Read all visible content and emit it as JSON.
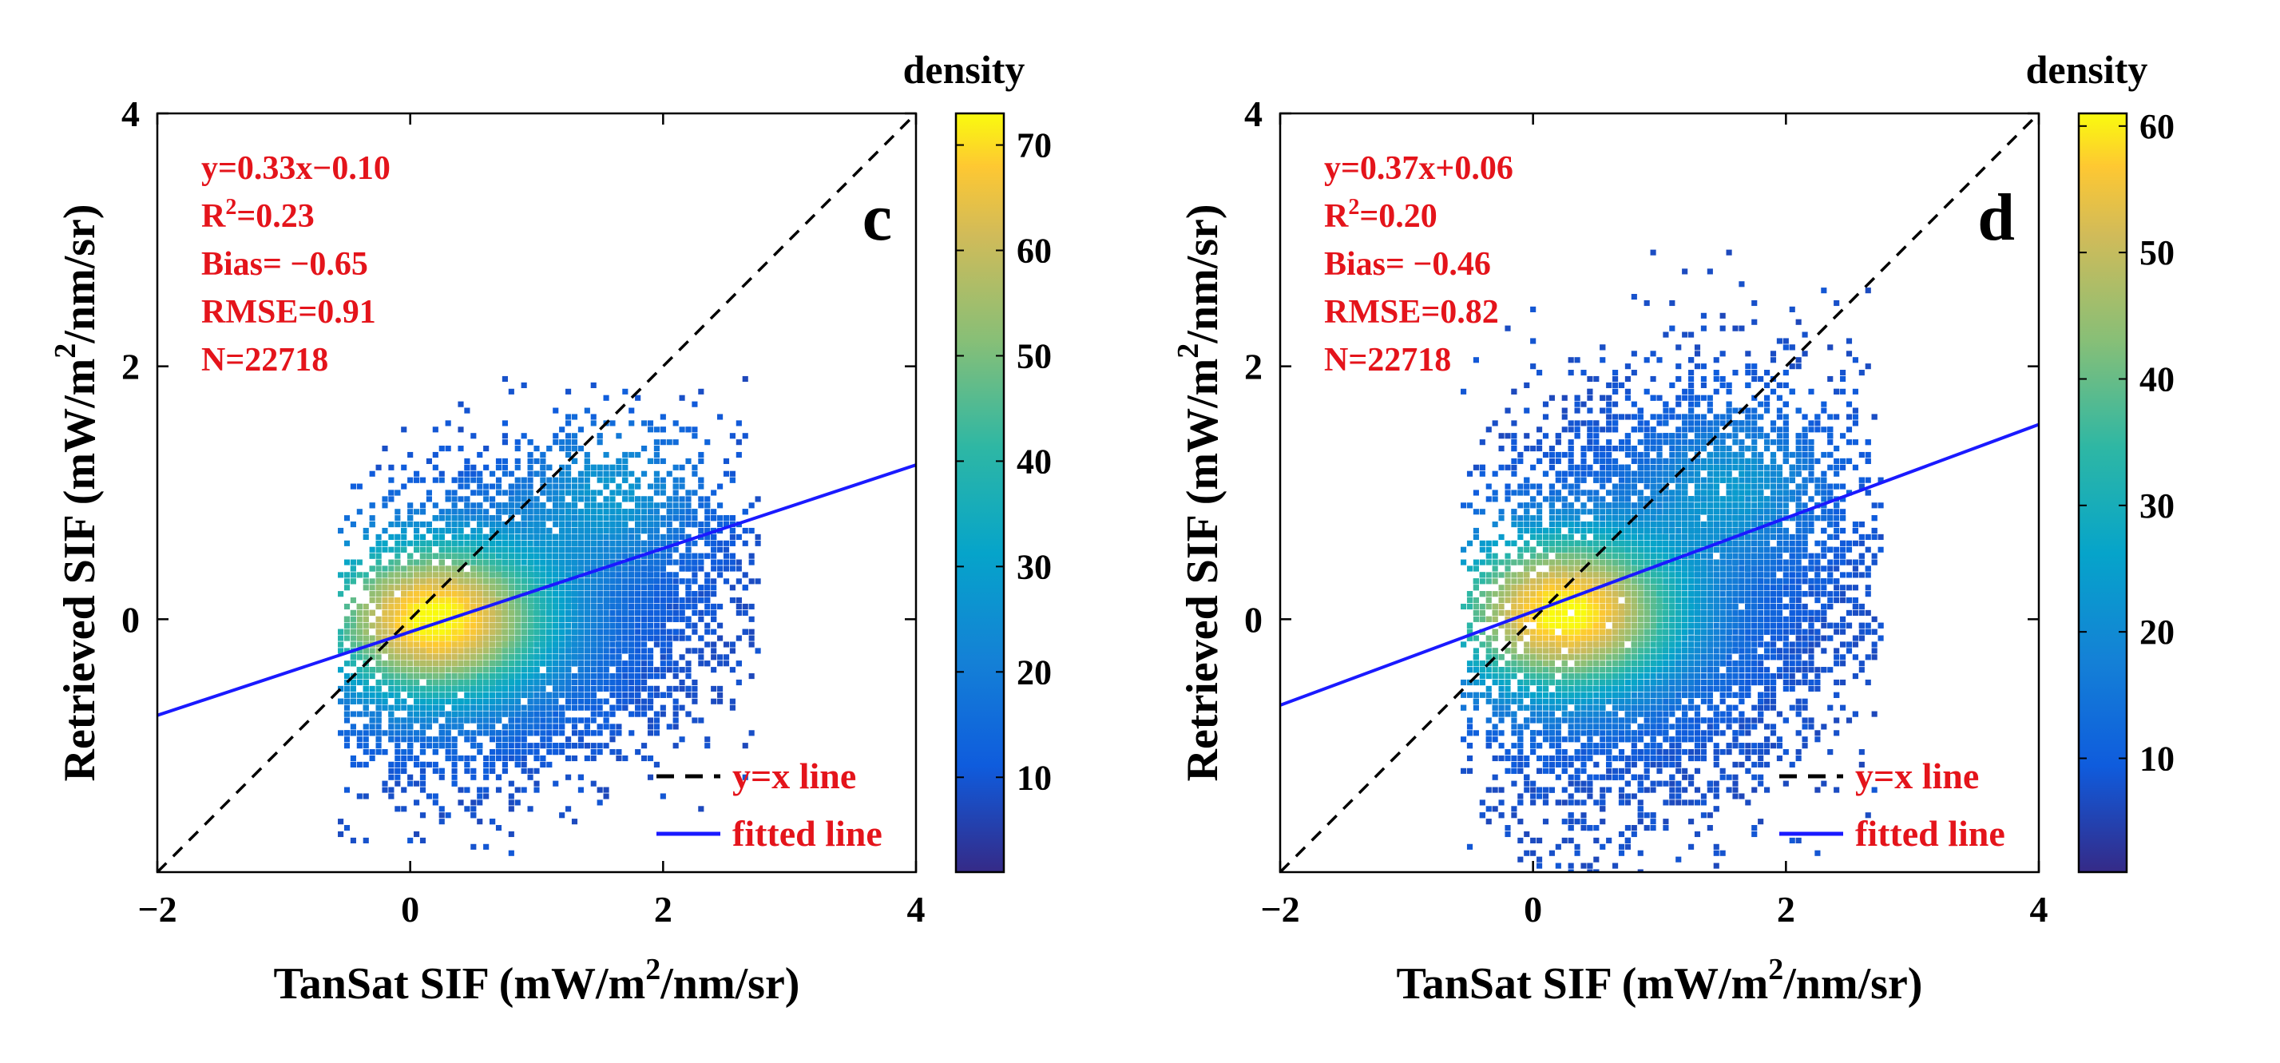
{
  "chart_data": [
    {
      "type": "scatter",
      "panel_letter": "c",
      "xlabel": "TanSat SIF (mW/m",
      "ylabel": "Retrieved SIF (mW/m",
      "unit_sup": "2",
      "unit_tail": "/nm/sr)",
      "xlim": [
        -2,
        4
      ],
      "ylim": [
        -2,
        4
      ],
      "x_ticks": [
        "−2",
        "0",
        "2",
        "4"
      ],
      "y_ticks": [
        "0",
        "2",
        "4"
      ],
      "colorbar": {
        "label": "density",
        "range": [
          1,
          73
        ],
        "ticks": [
          "10",
          "20",
          "30",
          "40",
          "50",
          "60",
          "70"
        ]
      },
      "stats": {
        "equation": "y=0.33x−0.10",
        "r2_label": "R",
        "r2_sup": "2",
        "r2_value": "=0.23",
        "bias": "Bias= −0.65",
        "rmse": "RMSE=0.91",
        "n": "N=22718"
      },
      "fit": {
        "slope": 0.33,
        "intercept": -0.1
      },
      "cloud": {
        "x_mean": 0.9,
        "x_sd": 0.75,
        "x_range": [
          -0.55,
          2.75
        ],
        "y_mean": 0.02,
        "y_sd": 0.55,
        "peak_x": 0.2,
        "peak_y": 0.0,
        "slope": 0.2
      },
      "legend": {
        "items": [
          "y=x line",
          "fitted line"
        ],
        "position": "bottom-right"
      }
    },
    {
      "type": "scatter",
      "panel_letter": "d",
      "xlabel": "TanSat SIF (mW/m",
      "ylabel": "Retrieved SIF (mW/m",
      "unit_sup": "2",
      "unit_tail": "/nm/sr)",
      "xlim": [
        -2,
        4
      ],
      "ylim": [
        -2,
        4
      ],
      "x_ticks": [
        "−2",
        "0",
        "2",
        "4"
      ],
      "y_ticks": [
        "0",
        "2",
        "4"
      ],
      "colorbar": {
        "label": "density",
        "range": [
          1,
          61
        ],
        "ticks": [
          "10",
          "20",
          "30",
          "40",
          "50",
          "60"
        ]
      },
      "stats": {
        "equation": "y=0.37x+0.06",
        "r2_label": "R",
        "r2_sup": "2",
        "r2_value": "=0.20",
        "bias": "Bias= −0.46",
        "rmse": "RMSE=0.82",
        "n": "N=22718"
      },
      "fit": {
        "slope": 0.37,
        "intercept": 0.06
      },
      "cloud": {
        "x_mean": 1.0,
        "x_sd": 0.75,
        "x_range": [
          -0.55,
          2.75
        ],
        "y_mean": 0.2,
        "y_sd": 0.75,
        "peak_x": 0.25,
        "peak_y": 0.05,
        "slope": 0.25
      },
      "legend": {
        "items": [
          "y=x line",
          "fitted line"
        ],
        "position": "bottom-right"
      }
    }
  ]
}
